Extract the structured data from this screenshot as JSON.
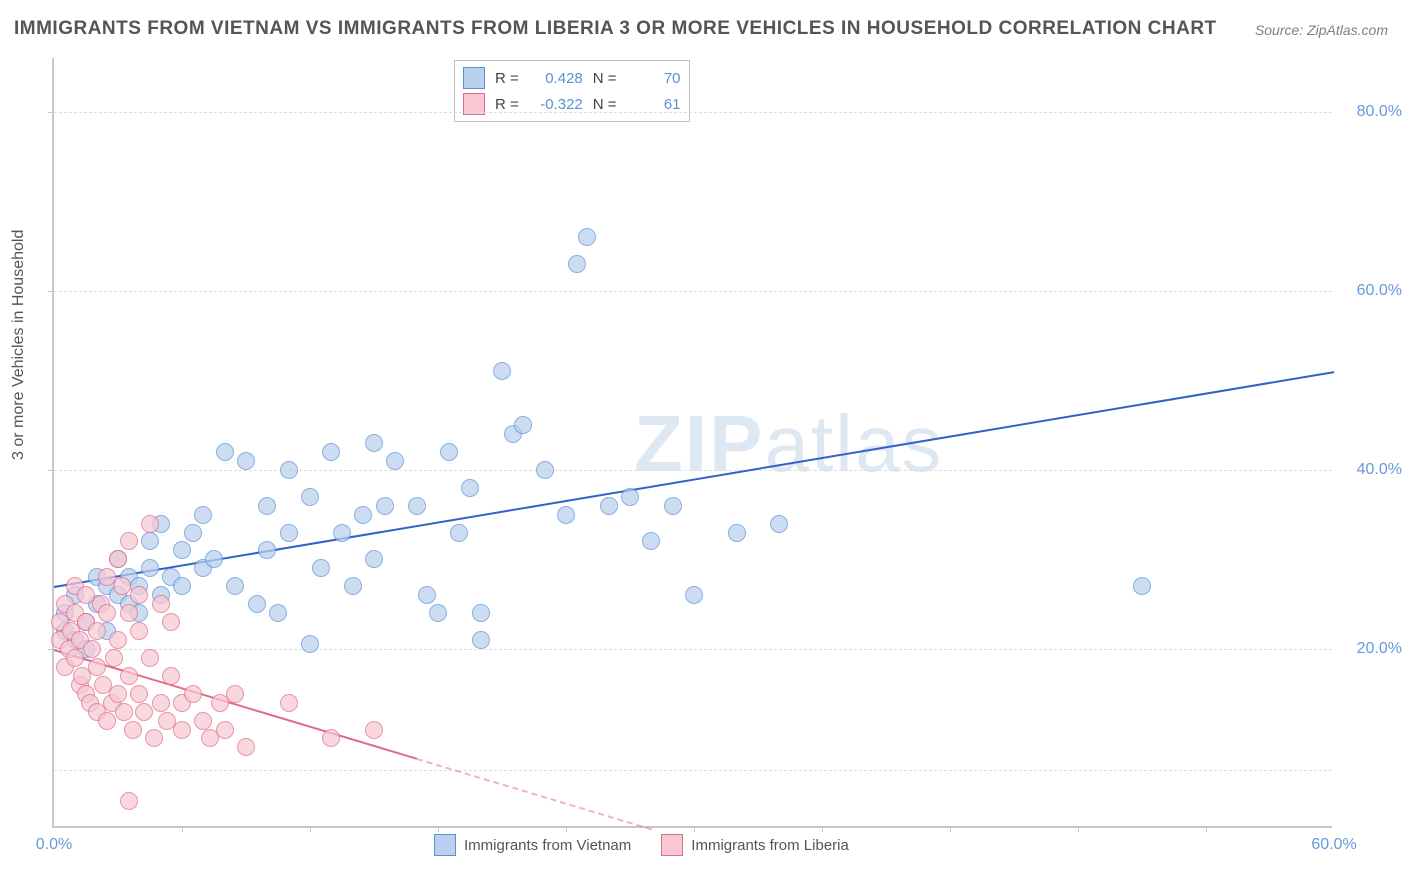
{
  "title": "IMMIGRANTS FROM VIETNAM VS IMMIGRANTS FROM LIBERIA 3 OR MORE VEHICLES IN HOUSEHOLD CORRELATION CHART",
  "source_prefix": "Source: ",
  "source_name": "ZipAtlas.com",
  "y_axis_label": "3 or more Vehicles in Household",
  "watermark_bold": "ZIP",
  "watermark_rest": "atlas",
  "chart": {
    "type": "scatter",
    "background_color": "#ffffff",
    "grid_color": "#dddddd",
    "axis_color": "#c8c8c8",
    "tick_label_color": "#6699dd",
    "tick_fontsize": 16,
    "xlim": [
      0,
      60
    ],
    "ylim": [
      0,
      86
    ],
    "x_ticks": [
      0,
      60
    ],
    "x_tick_labels": [
      "0.0%",
      "60.0%"
    ],
    "y_ticks": [
      20,
      40,
      60,
      80
    ],
    "y_tick_labels": [
      "20.0%",
      "40.0%",
      "60.0%",
      "80.0%"
    ],
    "grid_y": [
      6.5,
      20,
      40,
      60,
      80
    ],
    "x_minor_ticks": [
      6,
      12,
      18,
      24,
      30,
      36,
      42,
      48,
      54
    ],
    "marker_radius": 9,
    "marker_border_width": 1,
    "series": [
      {
        "name": "Immigrants from Vietnam",
        "fill": "#b9d1ee",
        "stroke": "#5b8fd6",
        "fill_opacity": 0.72,
        "trend": {
          "x1": 0,
          "y1": 27,
          "x2": 60,
          "y2": 51,
          "color": "#3062c9",
          "width": 2,
          "dash_after_x": null
        },
        "R": "0.428",
        "N": "70",
        "points": [
          [
            0.5,
            22
          ],
          [
            0.5,
            24
          ],
          [
            1,
            21
          ],
          [
            1,
            26
          ],
          [
            1.5,
            20
          ],
          [
            1.5,
            23
          ],
          [
            2,
            28
          ],
          [
            2,
            25
          ],
          [
            2.5,
            27
          ],
          [
            2.5,
            22
          ],
          [
            3,
            26
          ],
          [
            3,
            30
          ],
          [
            3.5,
            25
          ],
          [
            3.5,
            28
          ],
          [
            4,
            24
          ],
          [
            4,
            27
          ],
          [
            4.5,
            29
          ],
          [
            4.5,
            32
          ],
          [
            5,
            26
          ],
          [
            5,
            34
          ],
          [
            5.5,
            28
          ],
          [
            6,
            31
          ],
          [
            6,
            27
          ],
          [
            6.5,
            33
          ],
          [
            7,
            29
          ],
          [
            7,
            35
          ],
          [
            7.5,
            30
          ],
          [
            8,
            42
          ],
          [
            8.5,
            27
          ],
          [
            9,
            41
          ],
          [
            9.5,
            25
          ],
          [
            10,
            31
          ],
          [
            10,
            36
          ],
          [
            10.5,
            24
          ],
          [
            11,
            33
          ],
          [
            11,
            40
          ],
          [
            12,
            37
          ],
          [
            12,
            20.5
          ],
          [
            12.5,
            29
          ],
          [
            13,
            42
          ],
          [
            13.5,
            33
          ],
          [
            14,
            27
          ],
          [
            14.5,
            35
          ],
          [
            15,
            30
          ],
          [
            15,
            43
          ],
          [
            15.5,
            36
          ],
          [
            16,
            41
          ],
          [
            17,
            36
          ],
          [
            17.5,
            26
          ],
          [
            18,
            24
          ],
          [
            18.5,
            42
          ],
          [
            19,
            33
          ],
          [
            19.5,
            38
          ],
          [
            20,
            24
          ],
          [
            20,
            21
          ],
          [
            21,
            51
          ],
          [
            21.5,
            44
          ],
          [
            22,
            45
          ],
          [
            23,
            40
          ],
          [
            24,
            35
          ],
          [
            24.5,
            63
          ],
          [
            25,
            66
          ],
          [
            26,
            36
          ],
          [
            27,
            37
          ],
          [
            28,
            32
          ],
          [
            29,
            36
          ],
          [
            30,
            26
          ],
          [
            32,
            33
          ],
          [
            34,
            34
          ],
          [
            51,
            27
          ]
        ]
      },
      {
        "name": "Immigrants from Liberia",
        "fill": "#f7c8d4",
        "stroke": "#e06b8b",
        "fill_opacity": 0.72,
        "trend": {
          "x1": 0,
          "y1": 20,
          "x2": 28,
          "y2": 0,
          "color": "#e06b8b",
          "width": 2,
          "dash_after_x": 17
        },
        "R": "-0.322",
        "N": "61",
        "points": [
          [
            0.3,
            21
          ],
          [
            0.3,
            23
          ],
          [
            0.5,
            18
          ],
          [
            0.5,
            25
          ],
          [
            0.7,
            20
          ],
          [
            0.8,
            22
          ],
          [
            1,
            19
          ],
          [
            1,
            24
          ],
          [
            1,
            27
          ],
          [
            1.2,
            16
          ],
          [
            1.2,
            21
          ],
          [
            1.3,
            17
          ],
          [
            1.5,
            15
          ],
          [
            1.5,
            23
          ],
          [
            1.5,
            26
          ],
          [
            1.7,
            14
          ],
          [
            1.8,
            20
          ],
          [
            2,
            13
          ],
          [
            2,
            18
          ],
          [
            2,
            22
          ],
          [
            2.2,
            25
          ],
          [
            2.3,
            16
          ],
          [
            2.5,
            12
          ],
          [
            2.5,
            24
          ],
          [
            2.5,
            28
          ],
          [
            2.7,
            14
          ],
          [
            2.8,
            19
          ],
          [
            3,
            30
          ],
          [
            3,
            15
          ],
          [
            3,
            21
          ],
          [
            3.2,
            27
          ],
          [
            3.3,
            13
          ],
          [
            3.5,
            17
          ],
          [
            3.5,
            32
          ],
          [
            3.5,
            24
          ],
          [
            3.7,
            11
          ],
          [
            4,
            15
          ],
          [
            4,
            22
          ],
          [
            4,
            26
          ],
          [
            4.2,
            13
          ],
          [
            4.5,
            19
          ],
          [
            4.5,
            34
          ],
          [
            4.7,
            10
          ],
          [
            5,
            14
          ],
          [
            5,
            25
          ],
          [
            5.3,
            12
          ],
          [
            5.5,
            23
          ],
          [
            5.5,
            17
          ],
          [
            6,
            11
          ],
          [
            6,
            14
          ],
          [
            6.5,
            15
          ],
          [
            7,
            12
          ],
          [
            7.3,
            10
          ],
          [
            7.8,
            14
          ],
          [
            8,
            11
          ],
          [
            8.5,
            15
          ],
          [
            9,
            9
          ],
          [
            11,
            14
          ],
          [
            13,
            10
          ],
          [
            15,
            11
          ],
          [
            3.5,
            3
          ]
        ]
      }
    ]
  },
  "stats_legend": {
    "R_label": "R =",
    "N_label": "N ="
  }
}
